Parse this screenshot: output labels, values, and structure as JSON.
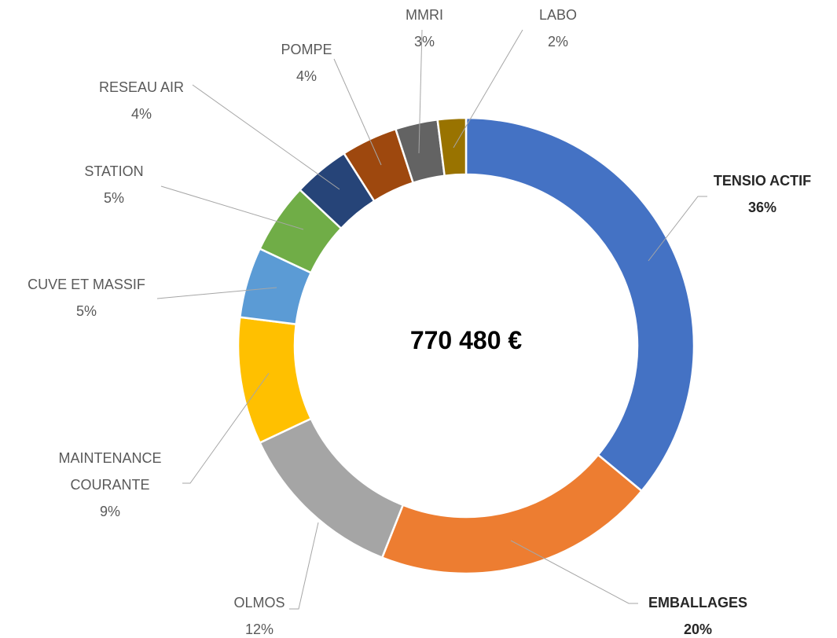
{
  "chart_data": {
    "type": "donut",
    "center_text": "770 480 €",
    "categories": [
      "TENSIO ACTIF",
      "EMBALLAGES",
      "OLMOS",
      "MAINTENANCE\nCOURANTE",
      "CUVE ET MASSIF",
      "STATION",
      "RESEAU AIR",
      "POMPE",
      "MMRI",
      "LABO"
    ],
    "values": [
      36,
      20,
      12,
      9,
      5,
      5,
      4,
      4,
      3,
      2
    ],
    "value_labels": [
      "36%",
      "20%",
      "12%",
      "9%",
      "5%",
      "5%",
      "4%",
      "4%",
      "3%",
      "2%"
    ],
    "colors": [
      "#4472c4",
      "#ed7d31",
      "#a5a5a5",
      "#ffc000",
      "#5b9bd5",
      "#70ad47",
      "#264478",
      "#9e480e",
      "#636363",
      "#997300"
    ],
    "bold": [
      0,
      1
    ]
  }
}
